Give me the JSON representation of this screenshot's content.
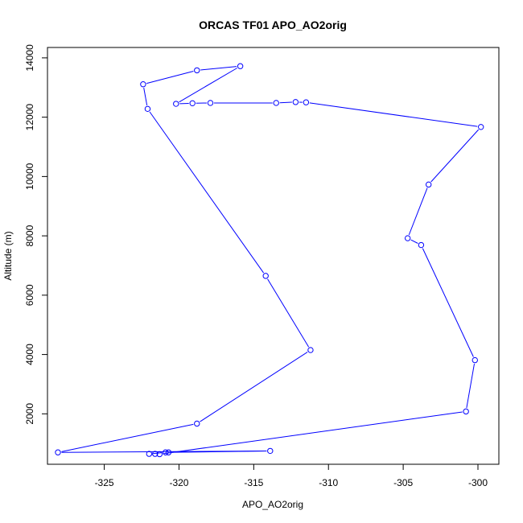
{
  "chart_data": {
    "type": "line",
    "title": "ORCAS TF01 APO_AO2orig",
    "xlabel": "APO_AO2orig",
    "ylabel": "Altitude (m)",
    "xlim": [
      -328.8,
      -298.6
    ],
    "ylim": [
      300,
      14350
    ],
    "xticks": [
      -325,
      -320,
      -315,
      -310,
      -305,
      -300
    ],
    "xtick_labels": [
      "-325",
      "-320",
      "-315",
      "-310",
      "-305",
      "-300"
    ],
    "yticks": [
      2000,
      4000,
      6000,
      8000,
      10000,
      12000,
      14000
    ],
    "ytick_labels": [
      "2000",
      "4000",
      "6000",
      "8000",
      "10000",
      "12000",
      "14000"
    ],
    "grid": false,
    "series": [
      {
        "color": "#0000ff",
        "marker": "open-circle",
        "points": [
          {
            "x": -321.6,
            "y": 650
          },
          {
            "x": -322.0,
            "y": 650
          },
          {
            "x": -320.9,
            "y": 700
          },
          {
            "x": -320.7,
            "y": 700
          },
          {
            "x": -313.9,
            "y": 750
          },
          {
            "x": -328.1,
            "y": 700
          },
          {
            "x": -318.8,
            "y": 1670
          },
          {
            "x": -311.2,
            "y": 4150
          },
          {
            "x": -314.2,
            "y": 6650
          },
          {
            "x": -322.1,
            "y": 12280
          },
          {
            "x": -322.4,
            "y": 13110
          },
          {
            "x": -318.8,
            "y": 13580
          },
          {
            "x": -315.9,
            "y": 13720
          },
          {
            "x": -320.2,
            "y": 12450
          },
          {
            "x": -319.1,
            "y": 12470
          },
          {
            "x": -317.9,
            "y": 12480
          },
          {
            "x": -313.5,
            "y": 12480
          },
          {
            "x": -312.2,
            "y": 12510
          },
          {
            "x": -311.5,
            "y": 12500
          },
          {
            "x": -299.8,
            "y": 11670
          },
          {
            "x": -303.3,
            "y": 9730
          },
          {
            "x": -304.7,
            "y": 7920
          },
          {
            "x": -303.8,
            "y": 7690
          },
          {
            "x": -300.2,
            "y": 3810
          },
          {
            "x": -300.8,
            "y": 2080
          },
          {
            "x": -321.3,
            "y": 640
          }
        ]
      }
    ]
  }
}
